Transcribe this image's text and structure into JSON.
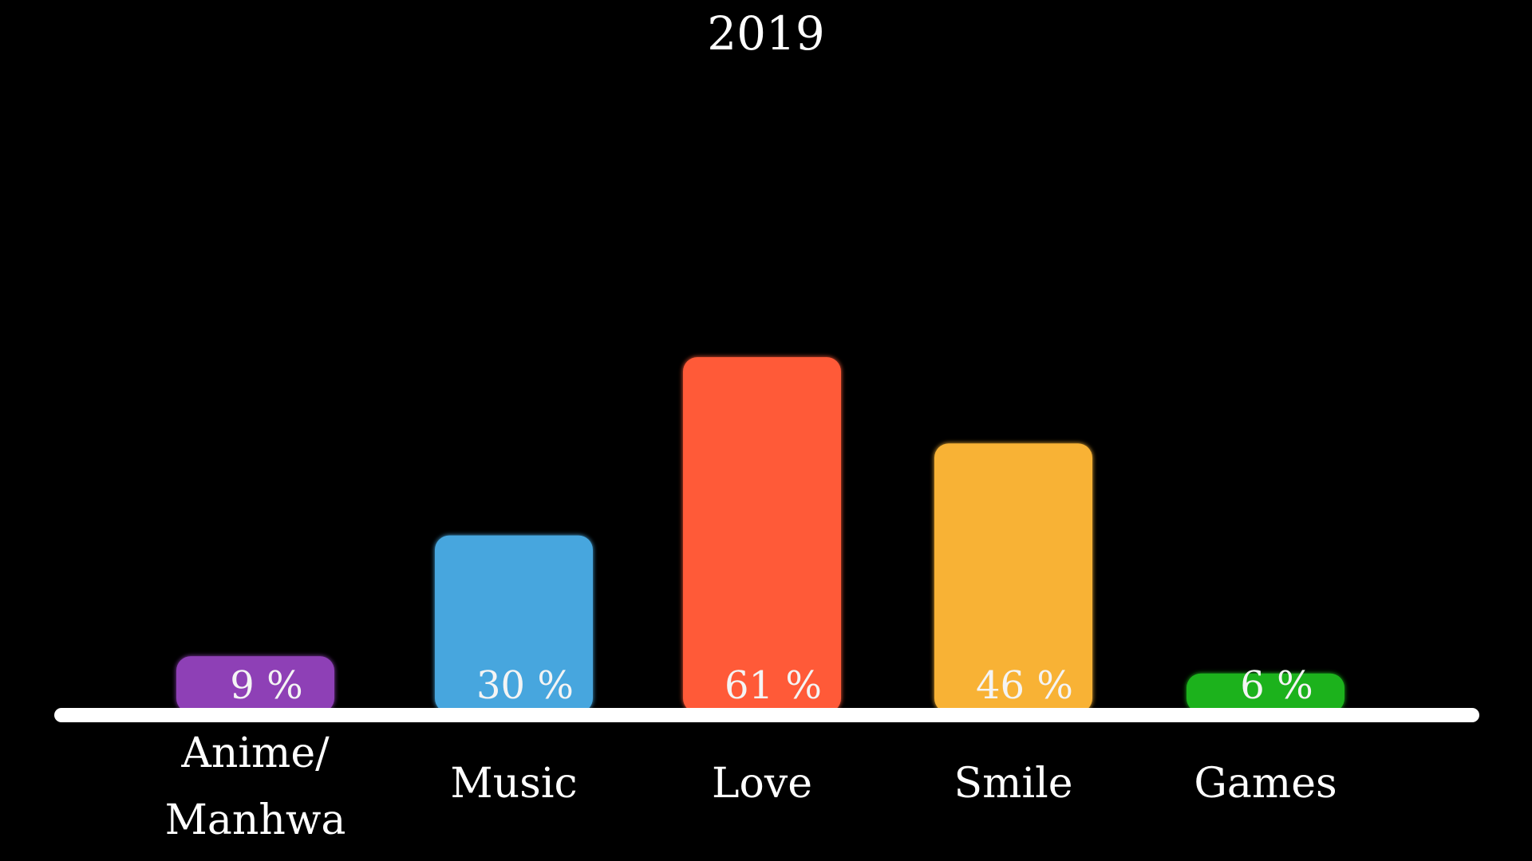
{
  "chart_data": {
    "type": "bar",
    "title": "2019",
    "categories": [
      "Anime/\nManhwa",
      "Music",
      "Love",
      "Smile",
      "Games"
    ],
    "values": [
      9,
      30,
      61,
      46,
      6
    ],
    "value_labels": [
      "9 %",
      "30 %",
      "61 %",
      "46 %",
      "6 %"
    ],
    "colors": [
      "#8e3fb6",
      "#46a6de",
      "#ff5a38",
      "#f8b236",
      "#1ab21f"
    ],
    "ylim": [
      0,
      100
    ],
    "xlabel": "",
    "ylabel": "",
    "grid": false,
    "legend": "none",
    "baseline_color": "#ffffff",
    "background": "#000000"
  }
}
